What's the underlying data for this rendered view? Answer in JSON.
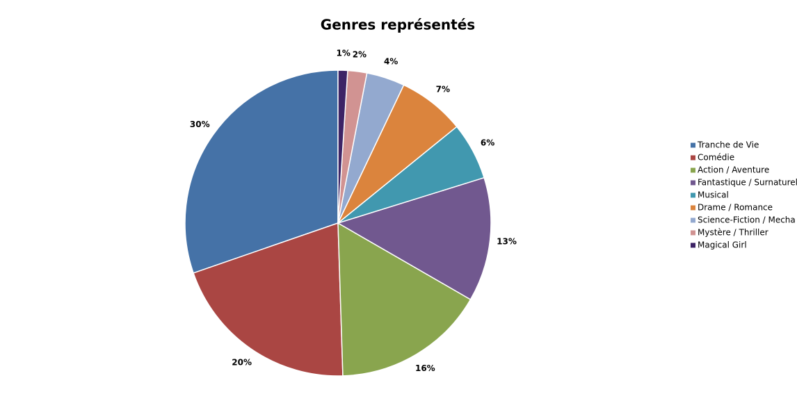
{
  "chart_data": {
    "type": "pie",
    "title": "Genres représentés",
    "categories": [
      "Tranche de Vie",
      "Comédie",
      "Action / Aventure",
      "Fantastique / Surnaturel",
      "Musical",
      "Drame / Romance",
      "Science-Fiction / Mecha",
      "Mystère / Thriller",
      "Magical Girl"
    ],
    "values": [
      30,
      20,
      16,
      13,
      6,
      7,
      4,
      2,
      1
    ],
    "value_labels": [
      "30%",
      "20%",
      "16%",
      "13%",
      "6%",
      "7%",
      "4%",
      "2%",
      "1%"
    ],
    "colors": [
      "#4572a7",
      "#aa4643",
      "#89a54e",
      "#71588f",
      "#4198af",
      "#db843d",
      "#93a9cf",
      "#d19392",
      "#3d2466"
    ],
    "legend": "right"
  }
}
